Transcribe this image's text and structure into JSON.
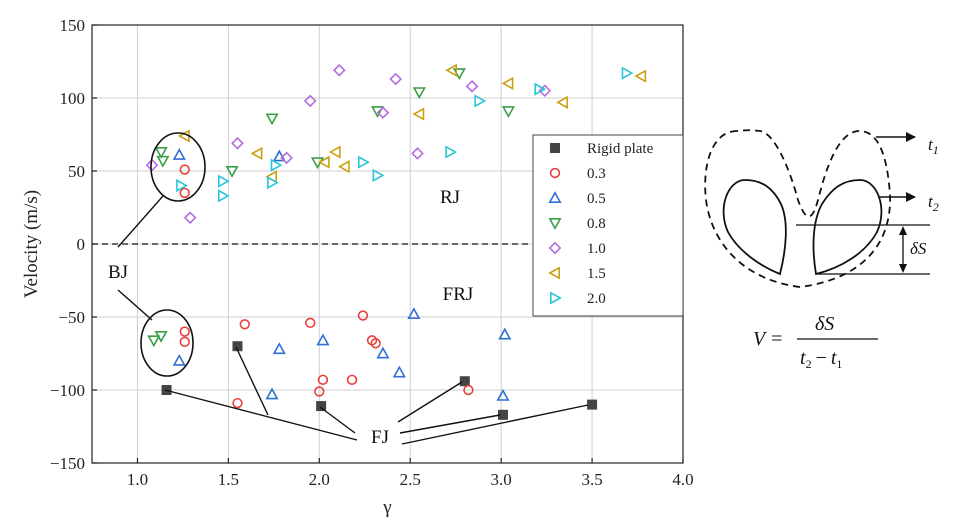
{
  "chart_data": {
    "type": "scatter",
    "xlabel": "γ",
    "ylabel": "Velocity (m/s)",
    "xlim": [
      0.75,
      4.0
    ],
    "ylim": [
      -150,
      150
    ],
    "xticks": [
      "1.0",
      "1.5",
      "2.0",
      "2.5",
      "3.0",
      "3.5",
      "4.0"
    ],
    "yticks": [
      "150",
      "100",
      "50",
      "0",
      "−50",
      "−100",
      "−150"
    ],
    "grid": true,
    "zero_line": "dashed",
    "legend_position": "right",
    "series": [
      {
        "name": "Rigid plate",
        "marker": "square",
        "color": "#444444",
        "points": [
          [
            1.16,
            -100
          ],
          [
            1.55,
            -70
          ],
          [
            2.01,
            -111
          ],
          [
            2.8,
            -94
          ],
          [
            3.01,
            -117
          ],
          [
            3.5,
            -110
          ]
        ]
      },
      {
        "name": "0.3",
        "marker": "circle",
        "color": "#e8413c",
        "points": [
          [
            1.26,
            51
          ],
          [
            1.26,
            35
          ],
          [
            1.26,
            -60
          ],
          [
            1.26,
            -67
          ],
          [
            1.55,
            -109
          ],
          [
            1.59,
            -55
          ],
          [
            1.95,
            -54
          ],
          [
            2.0,
            -101
          ],
          [
            2.02,
            -93
          ],
          [
            2.18,
            -93
          ],
          [
            2.24,
            -49
          ],
          [
            2.29,
            -66
          ],
          [
            2.31,
            -68
          ],
          [
            2.82,
            -100
          ]
        ]
      },
      {
        "name": "0.5",
        "marker": "triangle-up",
        "color": "#2f6fd6",
        "points": [
          [
            1.23,
            61
          ],
          [
            1.23,
            -80
          ],
          [
            1.74,
            -103
          ],
          [
            1.78,
            60
          ],
          [
            1.78,
            -72
          ],
          [
            2.02,
            -66
          ],
          [
            2.35,
            -75
          ],
          [
            2.44,
            -88
          ],
          [
            2.52,
            -48
          ],
          [
            3.02,
            -62
          ],
          [
            3.01,
            -104
          ]
        ]
      },
      {
        "name": "0.8",
        "marker": "triangle-down",
        "color": "#3c9e48",
        "points": [
          [
            1.13,
            63
          ],
          [
            1.14,
            57
          ],
          [
            1.09,
            -66
          ],
          [
            1.13,
            -63
          ],
          [
            1.52,
            50
          ],
          [
            1.74,
            86
          ],
          [
            1.99,
            56
          ],
          [
            2.32,
            91
          ],
          [
            2.55,
            104
          ],
          [
            2.77,
            117
          ],
          [
            3.04,
            91
          ]
        ]
      },
      {
        "name": "1.0",
        "marker": "diamond",
        "color": "#b36ce0",
        "points": [
          [
            1.08,
            54
          ],
          [
            1.29,
            18
          ],
          [
            1.55,
            69
          ],
          [
            1.82,
            59
          ],
          [
            1.95,
            98
          ],
          [
            2.11,
            119
          ],
          [
            2.35,
            90
          ],
          [
            2.42,
            113
          ],
          [
            2.54,
            62
          ],
          [
            2.84,
            108
          ],
          [
            3.24,
            105
          ]
        ]
      },
      {
        "name": "1.5",
        "marker": "triangle-left",
        "color": "#c9a012",
        "points": [
          [
            1.26,
            74
          ],
          [
            1.66,
            62
          ],
          [
            1.74,
            46
          ],
          [
            2.03,
            56
          ],
          [
            2.09,
            63
          ],
          [
            2.14,
            53
          ],
          [
            2.55,
            89
          ],
          [
            2.73,
            119
          ],
          [
            3.04,
            110
          ],
          [
            3.34,
            97
          ],
          [
            3.77,
            115
          ]
        ]
      },
      {
        "name": "2.0",
        "marker": "triangle-right",
        "color": "#27c6d8",
        "points": [
          [
            1.24,
            40
          ],
          [
            1.47,
            43
          ],
          [
            1.47,
            33
          ],
          [
            1.74,
            42
          ],
          [
            1.76,
            54
          ],
          [
            2.24,
            56
          ],
          [
            2.32,
            47
          ],
          [
            2.72,
            63
          ],
          [
            2.88,
            98
          ],
          [
            3.21,
            106
          ],
          [
            3.69,
            117
          ]
        ]
      }
    ],
    "annotations": [
      "RJ",
      "FRJ",
      "BJ",
      "FJ"
    ]
  },
  "schematic": {
    "t1_label": "t",
    "t1_sub": "1",
    "t2_label": "t",
    "t2_sub": "2",
    "ds_label": "δS",
    "formula_lhs": "V =",
    "formula_num": "δS",
    "formula_den": "t",
    "formula_den_sub2": "2",
    "formula_den_minus": "−",
    "formula_den_t1": "t",
    "formula_den_sub1": "1"
  }
}
